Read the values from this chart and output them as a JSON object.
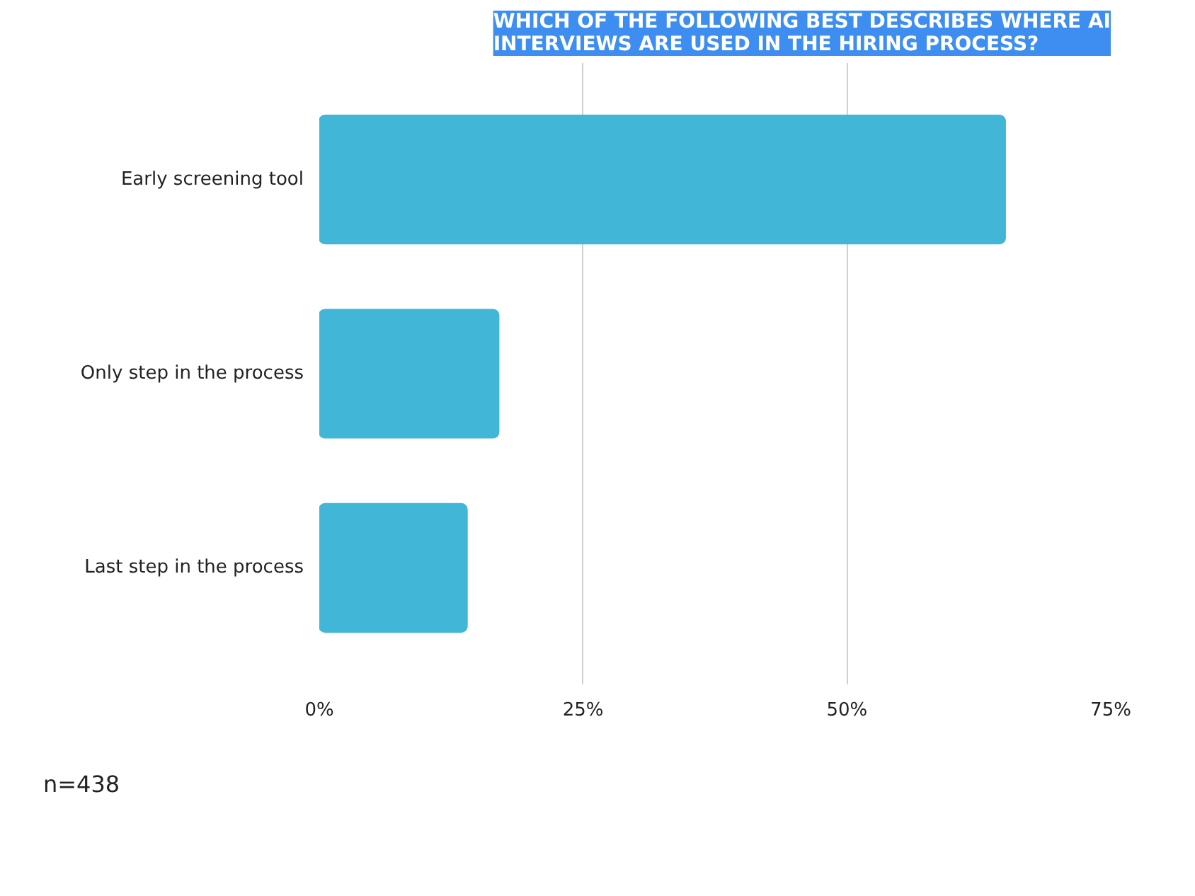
{
  "chart_data": {
    "type": "bar",
    "orientation": "horizontal",
    "title": "WHICH OF THE FOLLOWING BEST DESCRIBES WHERE AI INTERVIEWS ARE USED IN THE HIRING PROCESS?",
    "categories": [
      "Early screening tool",
      "Only step in the process",
      "Last step in the process"
    ],
    "values": [
      65,
      17,
      14
    ],
    "color": "#41b6d6",
    "xlim": [
      0,
      75
    ],
    "xticks": [
      {
        "value": 0,
        "label": "0%"
      },
      {
        "value": 25,
        "label": "25%"
      },
      {
        "value": 50,
        "label": "50%"
      },
      {
        "value": 75,
        "label": "75%"
      }
    ],
    "grid": "x",
    "annotations": [
      "n=438"
    ]
  }
}
